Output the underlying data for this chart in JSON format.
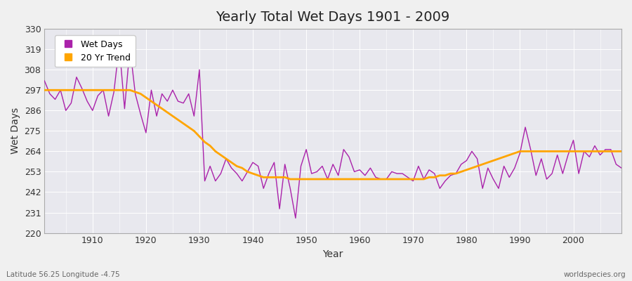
{
  "title": "Yearly Total Wet Days 1901 - 2009",
  "xlabel": "Year",
  "ylabel": "Wet Days",
  "ylim": [
    220,
    330
  ],
  "xlim": [
    1901,
    2009
  ],
  "yticks": [
    220,
    231,
    242,
    253,
    264,
    275,
    286,
    297,
    308,
    319,
    330
  ],
  "xticks": [
    1910,
    1920,
    1930,
    1940,
    1950,
    1960,
    1970,
    1980,
    1990,
    2000
  ],
  "wet_days_color": "#AA22AA",
  "trend_color": "#FFA500",
  "bg_color": "#F0F0F0",
  "plot_bg_color": "#E8E8EE",
  "legend_labels": [
    "Wet Days",
    "20 Yr Trend"
  ],
  "footer_left": "Latitude 56.25 Longitude -4.75",
  "footer_right": "worldspecies.org",
  "years": [
    1901,
    1902,
    1903,
    1904,
    1905,
    1906,
    1907,
    1908,
    1909,
    1910,
    1911,
    1912,
    1913,
    1914,
    1915,
    1916,
    1917,
    1918,
    1919,
    1920,
    1921,
    1922,
    1923,
    1924,
    1925,
    1926,
    1927,
    1928,
    1929,
    1930,
    1931,
    1932,
    1933,
    1934,
    1935,
    1936,
    1937,
    1938,
    1939,
    1940,
    1941,
    1942,
    1943,
    1944,
    1945,
    1946,
    1947,
    1948,
    1949,
    1950,
    1951,
    1952,
    1953,
    1954,
    1955,
    1956,
    1957,
    1958,
    1959,
    1960,
    1961,
    1962,
    1963,
    1964,
    1965,
    1966,
    1967,
    1968,
    1969,
    1970,
    1971,
    1972,
    1973,
    1974,
    1975,
    1976,
    1977,
    1978,
    1979,
    1980,
    1981,
    1982,
    1983,
    1984,
    1985,
    1986,
    1987,
    1988,
    1989,
    1990,
    1991,
    1992,
    1993,
    1994,
    1995,
    1996,
    1997,
    1998,
    1999,
    2000,
    2001,
    2002,
    2003,
    2004,
    2005,
    2006,
    2007,
    2008,
    2009
  ],
  "wet_days": [
    302,
    295,
    292,
    297,
    286,
    290,
    304,
    298,
    291,
    286,
    294,
    297,
    283,
    296,
    321,
    287,
    320,
    295,
    284,
    274,
    297,
    283,
    295,
    291,
    297,
    291,
    290,
    295,
    283,
    308,
    248,
    256,
    248,
    252,
    260,
    255,
    252,
    248,
    253,
    258,
    256,
    244,
    252,
    258,
    233,
    257,
    244,
    228,
    256,
    265,
    252,
    253,
    256,
    249,
    257,
    251,
    265,
    261,
    253,
    254,
    251,
    255,
    250,
    249,
    249,
    253,
    252,
    252,
    250,
    248,
    256,
    249,
    254,
    252,
    244,
    248,
    251,
    252,
    257,
    259,
    264,
    260,
    244,
    255,
    249,
    244,
    256,
    250,
    255,
    263,
    277,
    265,
    251,
    260,
    249,
    252,
    262,
    252,
    262,
    270,
    252,
    264,
    261,
    267,
    262,
    265,
    265,
    257,
    255
  ],
  "trend": [
    297,
    297,
    297,
    297,
    297,
    297,
    297,
    297,
    297,
    297,
    297,
    297,
    297,
    297,
    297,
    297,
    297,
    296,
    295,
    293,
    291,
    289,
    287,
    285,
    283,
    281,
    279,
    277,
    275,
    272,
    269,
    267,
    264,
    262,
    260,
    258,
    256,
    255,
    253,
    252,
    251,
    250,
    250,
    250,
    250,
    250,
    249,
    249,
    249,
    249,
    249,
    249,
    249,
    249,
    249,
    249,
    249,
    249,
    249,
    249,
    249,
    249,
    249,
    249,
    249,
    249,
    249,
    249,
    249,
    249,
    249,
    249,
    250,
    250,
    251,
    251,
    252,
    252,
    253,
    254,
    255,
    256,
    257,
    258,
    259,
    260,
    261,
    262,
    263,
    264,
    264,
    264,
    264,
    264,
    264,
    264,
    264,
    264,
    264,
    264,
    264,
    264,
    264,
    264,
    264,
    264,
    264,
    264,
    264
  ]
}
